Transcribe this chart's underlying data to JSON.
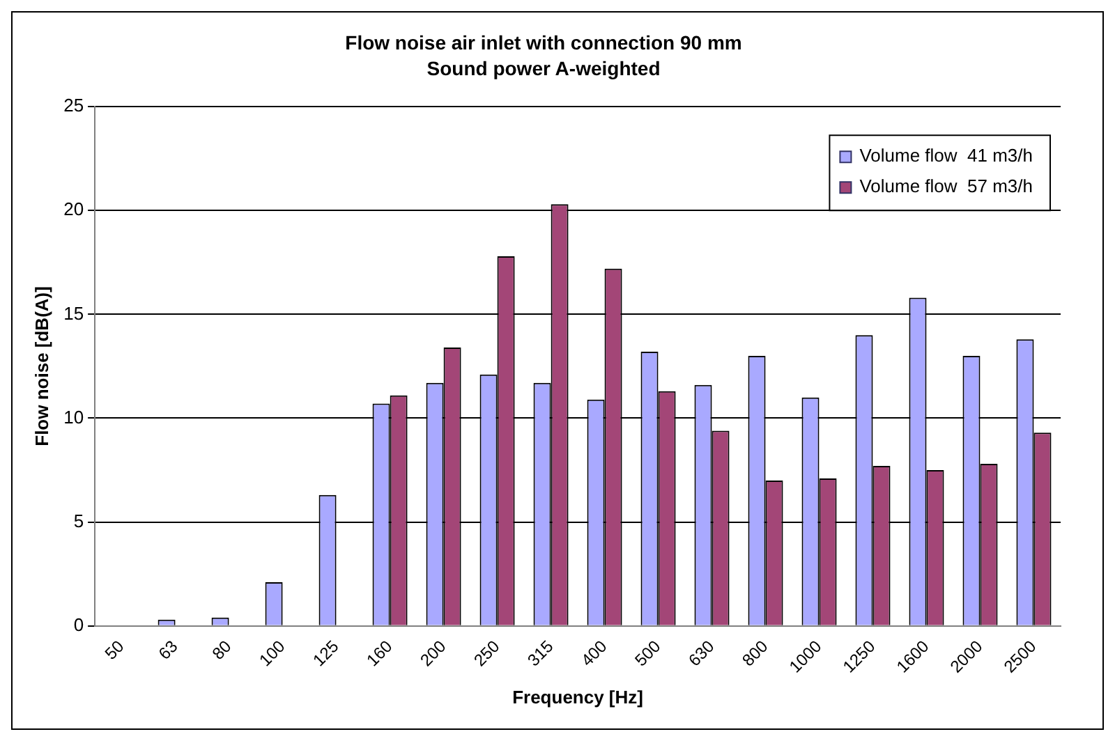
{
  "chart_data": {
    "type": "bar",
    "title": "Flow noise air inlet with connection 90 mm",
    "subtitle": "Sound power A-weighted",
    "xlabel": "Frequency [Hz]",
    "ylabel": "Flow noise [dB(A)]",
    "categories": [
      "50",
      "63",
      "80",
      "100",
      "125",
      "160",
      "200",
      "250",
      "315",
      "400",
      "500",
      "630",
      "800",
      "1000",
      "1250",
      "1600",
      "2000",
      "2500"
    ],
    "series": [
      {
        "name": "Volume flow  41 m3/h",
        "color": "#a9a9ff",
        "values": [
          null,
          0.3,
          0.4,
          2.1,
          6.3,
          10.7,
          11.7,
          12.1,
          11.7,
          10.9,
          13.2,
          11.6,
          13.0,
          11.0,
          14.0,
          15.8,
          13.0,
          13.8
        ]
      },
      {
        "name": "Volume flow  57 m3/h",
        "color": "#a34677",
        "values": [
          null,
          null,
          null,
          null,
          null,
          11.1,
          13.4,
          17.8,
          20.3,
          17.2,
          11.3,
          9.4,
          7.0,
          7.1,
          7.7,
          7.5,
          7.8,
          9.3
        ]
      }
    ],
    "ylim": [
      0,
      25
    ],
    "yticks": [
      0,
      5,
      10,
      15,
      20,
      25
    ],
    "grid": "y",
    "legend": "top right"
  }
}
